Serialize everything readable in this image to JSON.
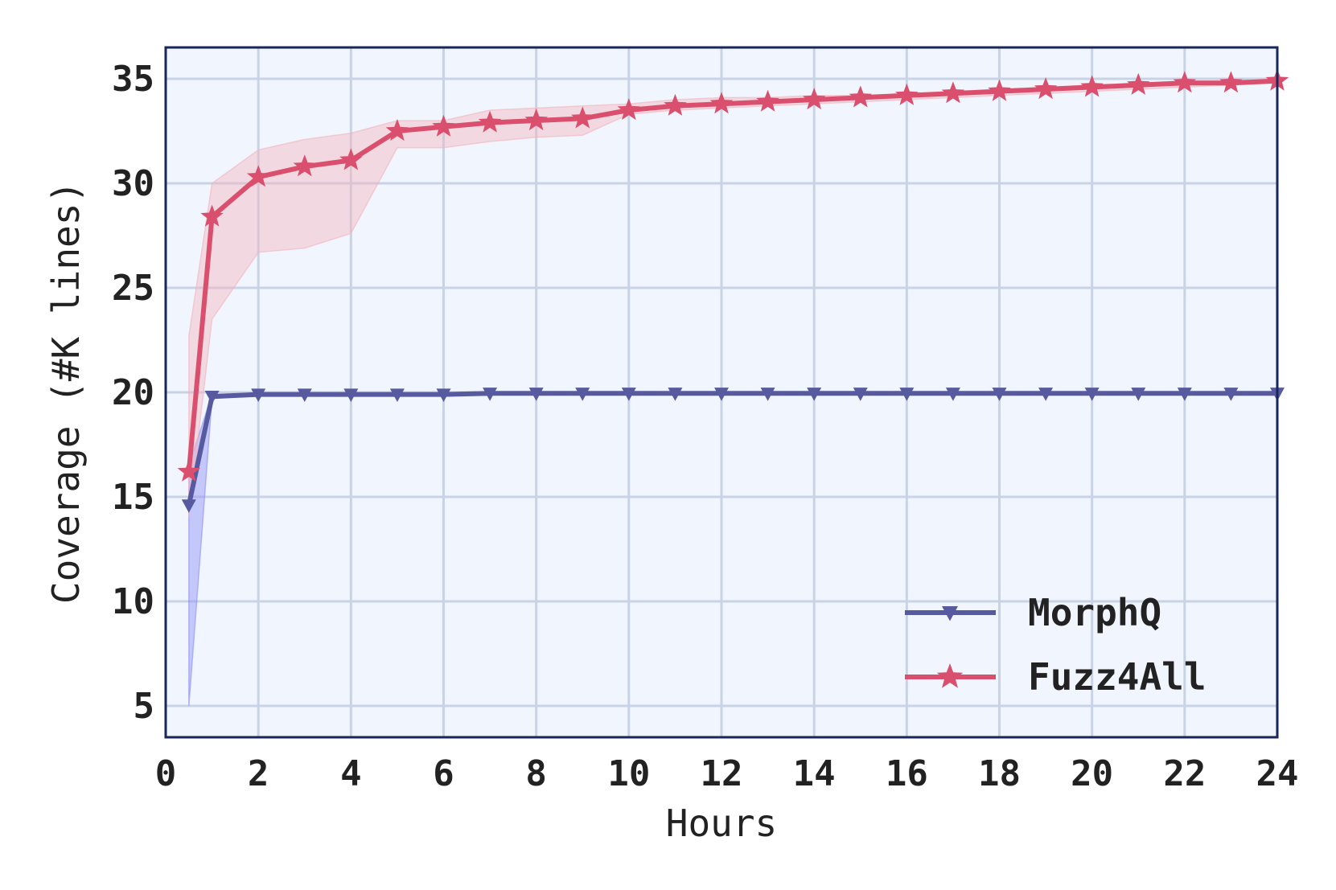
{
  "chart_data": {
    "type": "line",
    "xlabel": "Hours",
    "ylabel": "Coverage (#K lines)",
    "xlim": [
      0,
      24
    ],
    "ylim": [
      3.5,
      36.5
    ],
    "xticks": [
      0,
      2,
      4,
      6,
      8,
      10,
      12,
      14,
      16,
      18,
      20,
      22,
      24
    ],
    "yticks": [
      5,
      10,
      15,
      20,
      25,
      30,
      35
    ],
    "grid": true,
    "legend_position": "lower-right",
    "background": "#f1f6fe",
    "grid_color": "#c9d3e6",
    "frame_color": "#17275a",
    "series": [
      {
        "name": "MorphQ",
        "color": "#575a9e",
        "band_color": "#8f8ff7",
        "marker": "triangle-down",
        "x": [
          0.5,
          1,
          2,
          3,
          4,
          5,
          6,
          7,
          8,
          9,
          10,
          11,
          12,
          13,
          14,
          15,
          16,
          17,
          18,
          19,
          20,
          21,
          22,
          23,
          24
        ],
        "values": [
          14.6,
          19.8,
          19.9,
          19.9,
          19.9,
          19.9,
          19.9,
          19.95,
          19.95,
          19.95,
          19.95,
          19.95,
          19.95,
          19.95,
          19.95,
          19.95,
          19.95,
          19.95,
          19.95,
          19.95,
          19.95,
          19.95,
          19.95,
          19.95,
          19.95
        ],
        "lower": [
          5.0,
          19.7,
          19.85,
          19.85,
          19.85,
          19.85,
          19.85,
          19.9,
          19.9,
          19.9,
          19.9,
          19.9,
          19.9,
          19.9,
          19.9,
          19.9,
          19.9,
          19.9,
          19.9,
          19.9,
          19.9,
          19.9,
          19.9,
          19.9,
          19.9
        ],
        "upper": [
          16.5,
          19.9,
          19.95,
          19.95,
          19.95,
          19.95,
          19.95,
          20.0,
          20.0,
          20.0,
          20.0,
          20.0,
          20.0,
          20.0,
          20.0,
          20.0,
          20.0,
          20.0,
          20.0,
          20.0,
          20.0,
          20.0,
          20.0,
          20.0,
          20.0
        ]
      },
      {
        "name": "Fuzz4All",
        "color": "#d94f6d",
        "band_color": "#f3b4bd",
        "marker": "star",
        "x": [
          0.5,
          1,
          2,
          3,
          4,
          5,
          6,
          7,
          8,
          9,
          10,
          11,
          12,
          13,
          14,
          15,
          16,
          17,
          18,
          19,
          20,
          21,
          22,
          23,
          24
        ],
        "values": [
          16.2,
          28.4,
          30.3,
          30.8,
          31.1,
          32.5,
          32.7,
          32.9,
          33.0,
          33.1,
          33.5,
          33.7,
          33.8,
          33.9,
          34.0,
          34.1,
          34.2,
          34.3,
          34.4,
          34.5,
          34.6,
          34.7,
          34.8,
          34.8,
          34.9
        ],
        "lower": [
          14.0,
          23.5,
          26.7,
          26.9,
          27.6,
          31.7,
          31.7,
          32.0,
          32.2,
          32.3,
          33.3,
          33.5,
          33.6,
          33.7,
          33.8,
          33.9,
          34.0,
          34.1,
          34.2,
          34.3,
          34.4,
          34.5,
          34.6,
          34.7,
          34.8
        ],
        "upper": [
          22.7,
          30.0,
          31.6,
          32.1,
          32.4,
          33.0,
          33.0,
          33.5,
          33.6,
          33.7,
          33.8,
          34.0,
          34.1,
          34.1,
          34.2,
          34.2,
          34.3,
          34.4,
          34.5,
          34.6,
          34.7,
          34.8,
          34.9,
          34.9,
          35.0
        ]
      }
    ]
  }
}
